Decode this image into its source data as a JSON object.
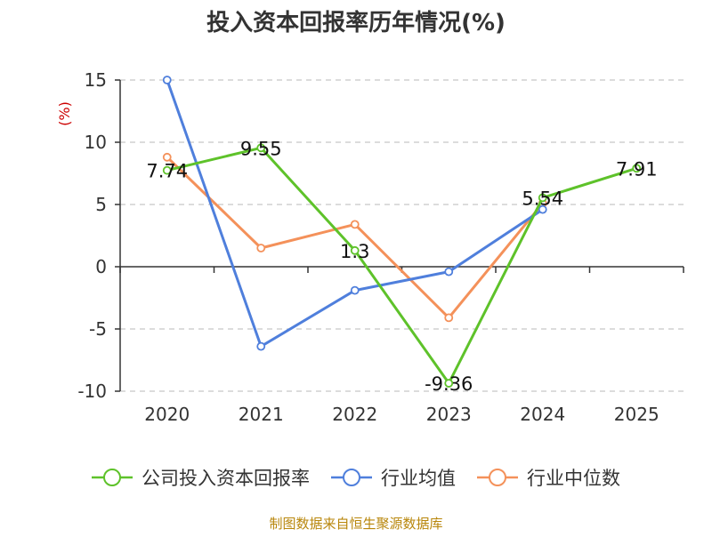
{
  "chart_data": {
    "type": "line",
    "title": "投入资本回报率历年情况(%)",
    "ylabel": "(%)",
    "xlabel": "",
    "x": [
      "2020",
      "2021",
      "2022",
      "2023",
      "2024",
      "2025"
    ],
    "ylim": [
      -10,
      15
    ],
    "yticks": [
      15,
      10,
      5,
      0,
      -5,
      -10
    ],
    "grid": true,
    "legend": "bottom",
    "series": [
      {
        "name": "公司投入资本回报率",
        "color": "#5ec22a",
        "values": [
          7.74,
          9.55,
          1.3,
          -9.36,
          5.54,
          7.91
        ],
        "labels": [
          "7.74",
          "9.55",
          "1.3",
          "-9.36",
          "5.54",
          "7.91"
        ]
      },
      {
        "name": "行业均值",
        "color": "#4f7fdc",
        "values": [
          15.0,
          -6.4,
          -1.9,
          -0.4,
          4.6,
          null
        ]
      },
      {
        "name": "行业中位数",
        "color": "#f4915a",
        "values": [
          8.8,
          1.5,
          3.4,
          -4.1,
          5.1,
          null
        ]
      }
    ]
  },
  "footer": {
    "source": "制图数据来自恒生聚源数据库"
  }
}
